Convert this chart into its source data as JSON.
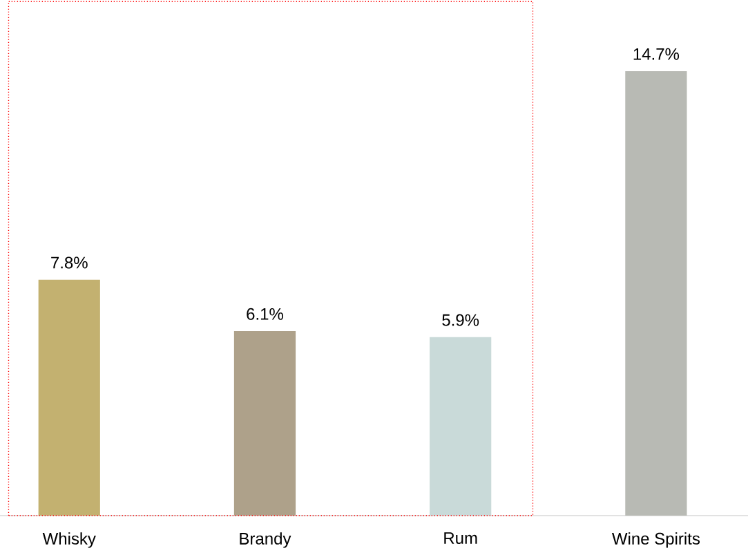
{
  "chart_data": {
    "type": "bar",
    "categories": [
      "Whisky",
      "Brandy",
      "Rum",
      "Wine Spirits"
    ],
    "values": [
      7.8,
      6.1,
      5.9,
      14.7
    ],
    "colors": [
      "#c3b170",
      "#aea18a",
      "#c9dad9",
      "#b8bab4"
    ],
    "value_labels": [
      "7.8%",
      "6.1%",
      "5.9%",
      "14.7%"
    ]
  }
}
